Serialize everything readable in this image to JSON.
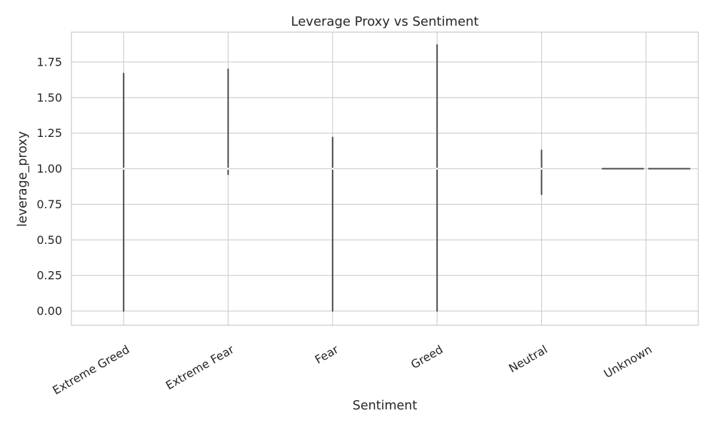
{
  "chart_data": {
    "type": "violin",
    "title": "Leverage Proxy vs Sentiment",
    "xlabel": "Sentiment",
    "ylabel": "leverage_proxy",
    "categories": [
      "Extreme Greed",
      "Extreme Fear",
      "Fear",
      "Greed",
      "Neutral",
      "Unknown"
    ],
    "ylim": [
      -0.1,
      1.96
    ],
    "yticks": [
      0.0,
      0.25,
      0.5,
      0.75,
      1.0,
      1.25,
      1.5,
      1.75
    ],
    "ytick_labels": [
      "0.00",
      "0.25",
      "0.50",
      "0.75",
      "1.00",
      "1.25",
      "1.50",
      "1.75"
    ],
    "grid": true,
    "series_color": "#4a4a4a",
    "distributions": [
      {
        "category": "Extreme Greed",
        "min": 0.0,
        "max": 1.67,
        "median": 1.0
      },
      {
        "category": "Extreme Fear",
        "min": 0.96,
        "max": 1.7,
        "median": 1.0
      },
      {
        "category": "Fear",
        "min": 0.0,
        "max": 1.22,
        "median": 1.0
      },
      {
        "category": "Greed",
        "min": 0.0,
        "max": 1.87,
        "median": 1.0
      },
      {
        "category": "Neutral",
        "min": 0.82,
        "max": 1.13,
        "median": 1.0
      },
      {
        "category": "Unknown",
        "min": 1.0,
        "max": 1.0,
        "median": 1.0
      }
    ]
  }
}
